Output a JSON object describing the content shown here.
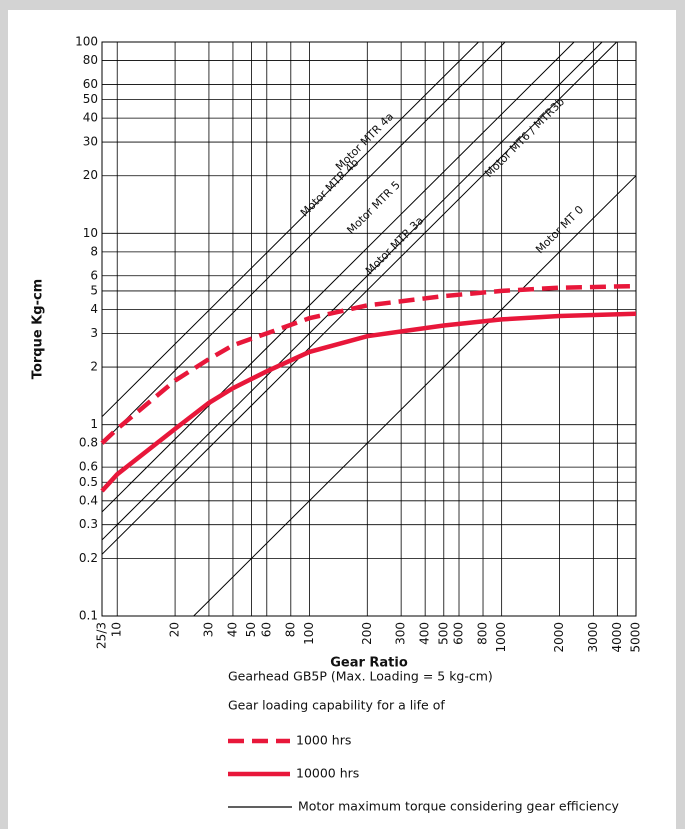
{
  "chart_data": {
    "type": "line",
    "xlabel": "Gear Ratio",
    "ylabel": "Torque Kg-cm",
    "xscale": "log",
    "yscale": "log",
    "grid": true,
    "xlim": [
      8.333,
      5000
    ],
    "ylim": [
      0.1,
      100
    ],
    "xticks": [
      {
        "value": 8.333,
        "label": "25/3"
      },
      10,
      20,
      30,
      40,
      50,
      60,
      80,
      100,
      200,
      300,
      400,
      500,
      600,
      800,
      1000,
      2000,
      3000,
      4000,
      5000
    ],
    "yticks": [
      0.1,
      0.2,
      0.3,
      0.4,
      0.5,
      0.6,
      0.8,
      1,
      2,
      3,
      4,
      5,
      6,
      8,
      10,
      20,
      30,
      40,
      50,
      60,
      80,
      100
    ],
    "series": [
      {
        "name": "1000 hrs",
        "color": "#e8173a",
        "style": "dashed",
        "x": [
          8.333,
          10,
          20,
          30,
          40,
          60,
          100,
          200,
          500,
          1000,
          2000,
          5000
        ],
        "values": [
          0.8,
          0.95,
          1.7,
          2.2,
          2.6,
          3.0,
          3.6,
          4.2,
          4.7,
          5.0,
          5.2,
          5.3
        ]
      },
      {
        "name": "10000 hrs",
        "color": "#e8173a",
        "style": "solid",
        "x": [
          8.333,
          10,
          20,
          30,
          40,
          60,
          100,
          200,
          500,
          1000,
          2000,
          5000
        ],
        "values": [
          0.45,
          0.55,
          0.95,
          1.3,
          1.55,
          1.9,
          2.4,
          2.9,
          3.3,
          3.55,
          3.7,
          3.8
        ]
      }
    ],
    "motor_lines": [
      {
        "name": "Motor MTR 4a",
        "color": "#000000",
        "x": [
          8.333,
          758
        ],
        "values": [
          1.1,
          100
        ]
      },
      {
        "name": "Motor MTR 4b",
        "color": "#000000",
        "x": [
          8.333,
          1042
        ],
        "values": [
          0.8,
          100
        ]
      },
      {
        "name": "Motor MTR 5",
        "color": "#000000",
        "x": [
          8.333,
          2381
        ],
        "values": [
          0.35,
          100
        ]
      },
      {
        "name": "Motor MTR 3a",
        "color": "#000000",
        "x": [
          8.333,
          3333
        ],
        "values": [
          0.25,
          100
        ]
      },
      {
        "name": "Motor MT6 / MTR3b",
        "color": "#000000",
        "x": [
          8.333,
          3968
        ],
        "values": [
          0.21,
          100
        ]
      },
      {
        "name": "Motor MT 0",
        "color": "#000000",
        "x": [
          25,
          5000
        ],
        "values": [
          0.1,
          20
        ]
      }
    ],
    "notes": [
      "Gearhead GB5P (Max. Loading = 5 kg-cm)",
      "Gear loading capability for a life of"
    ],
    "motor_legend": "Motor maximum torque considering gear efficiency"
  }
}
